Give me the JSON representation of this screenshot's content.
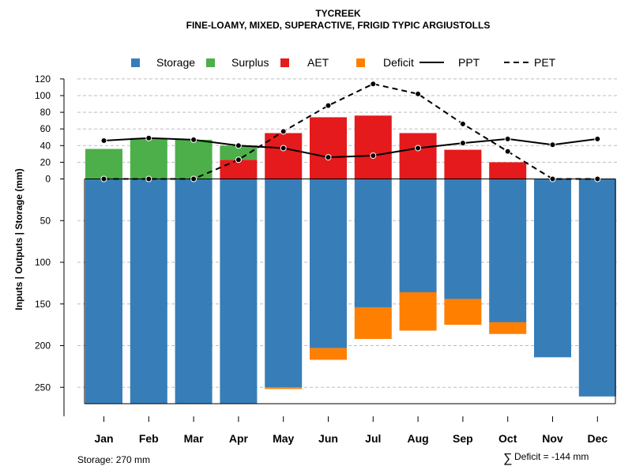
{
  "chart_data": {
    "type": "bar",
    "title": "TYCREEK",
    "subtitle": "FINE-LOAMY, MIXED, SUPERACTIVE, FRIGID TYPIC ARGIUSTOLLS",
    "ylabel": "Inputs | Outputs | Storage     (mm)",
    "categories": [
      "Jan",
      "Feb",
      "Mar",
      "Apr",
      "May",
      "Jun",
      "Jul",
      "Aug",
      "Sep",
      "Oct",
      "Nov",
      "Dec"
    ],
    "ylim": [
      -270,
      120
    ],
    "y_ticks_above": [
      0,
      20,
      40,
      60,
      80,
      100,
      120
    ],
    "y_ticks_below": [
      50,
      100,
      150,
      200,
      250
    ],
    "legend": [
      {
        "label": "Storage",
        "kind": "square",
        "color": "#377eb8"
      },
      {
        "label": "Surplus",
        "kind": "square",
        "color": "#4daf4a"
      },
      {
        "label": "AET",
        "kind": "square",
        "color": "#e41a1c"
      },
      {
        "label": "Deficit",
        "kind": "square",
        "color": "#ff7f00"
      },
      {
        "label": "PPT",
        "kind": "solid-line",
        "color": "#000000"
      },
      {
        "label": "PET",
        "kind": "dashed-line",
        "color": "#000000"
      }
    ],
    "series": [
      {
        "name": "Storage",
        "values": [
          270,
          270,
          270,
          270,
          250,
          203,
          154,
          136,
          144,
          172,
          214,
          261
        ]
      },
      {
        "name": "Surplus",
        "values": [
          36,
          49,
          47,
          17,
          0,
          0,
          0,
          0,
          0,
          0,
          0,
          0
        ]
      },
      {
        "name": "AET",
        "values": [
          0,
          0,
          0,
          23,
          55,
          74,
          76,
          55,
          35,
          20,
          0,
          0
        ]
      },
      {
        "name": "Deficit",
        "values": [
          0,
          0,
          0,
          0,
          2,
          14,
          38,
          46,
          31,
          14,
          0,
          0
        ]
      },
      {
        "name": "PPT",
        "values": [
          46,
          49,
          47,
          40,
          37,
          26,
          28,
          37,
          43,
          48,
          41,
          48
        ]
      },
      {
        "name": "PET",
        "values": [
          0,
          0,
          0,
          23,
          57,
          88,
          114,
          102,
          66,
          33,
          0,
          0
        ]
      }
    ],
    "colors": {
      "storage": "#377eb8",
      "surplus": "#4daf4a",
      "aet": "#e41a1c",
      "deficit": "#ff7f00",
      "grid": "#bdbdbd"
    }
  },
  "footer": {
    "storage": "Storage: 270 mm",
    "deficit_symbol": "∑",
    "deficit": "Deficit = -144 mm"
  }
}
